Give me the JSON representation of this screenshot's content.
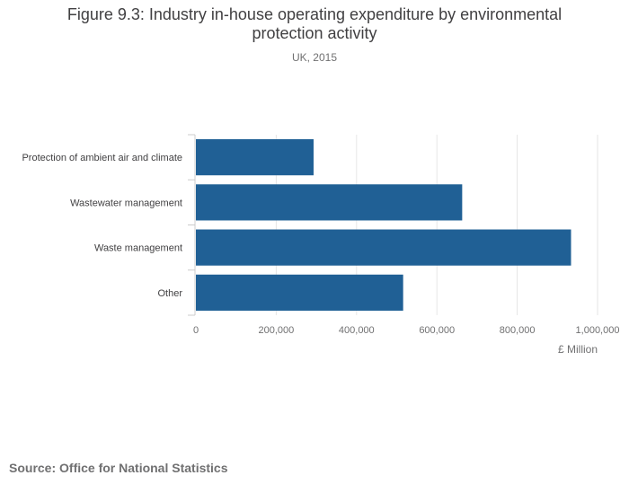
{
  "chart_data": {
    "type": "bar",
    "orientation": "horizontal",
    "title": "Figure 9.3: Industry in-house operating expenditure by environmental protection activity",
    "subtitle": "UK, 2015",
    "categories": [
      "Protection of ambient air and climate",
      "Wastewater management",
      "Waste management",
      "Other"
    ],
    "series": [
      {
        "name": "£ Million",
        "values": [
          293000,
          663000,
          934000,
          516000
        ]
      }
    ],
    "xlabel": "£ Million",
    "ylabel": "",
    "xlim": [
      0,
      1000000
    ],
    "xticks": [
      0,
      200000,
      400000,
      600000,
      800000,
      1000000
    ],
    "xtick_labels": [
      "0",
      "200,000",
      "400,000",
      "600,000",
      "800,000",
      "1,000,000"
    ],
    "grid": true,
    "legend": "none",
    "bar_color": "#206095",
    "source": "Source: Office for National Statistics"
  }
}
